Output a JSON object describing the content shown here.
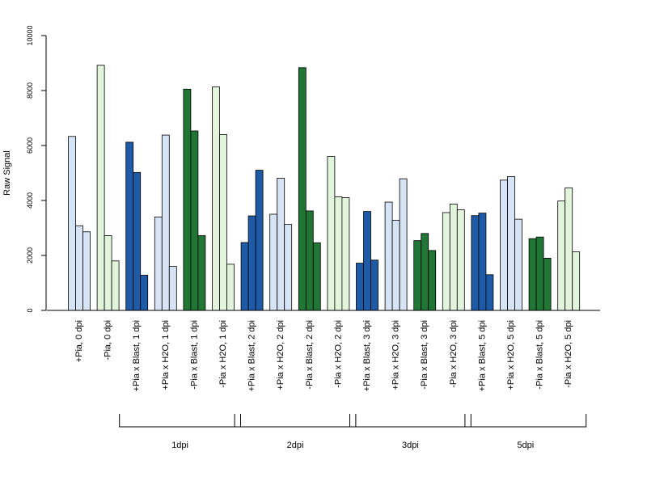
{
  "chart_data": {
    "type": "bar",
    "ylabel": "Raw Signal",
    "ylim": [
      0,
      10000
    ],
    "yticks": [
      0,
      2000,
      4000,
      6000,
      8000,
      10000
    ],
    "grid": false,
    "colors": {
      "plus_pia_blast": "#1f5aa6",
      "plus_pia_h2o": "#d6e4f5",
      "minus_pia_blast": "#217535",
      "minus_pia_h2o": "#e2f5dc"
    },
    "categories": [
      {
        "label": "+Pia, 0 dpi",
        "color_key": "plus_pia_h2o",
        "values": [
          6330,
          3080,
          2860
        ]
      },
      {
        "label": "-Pia, 0 dpi",
        "color_key": "minus_pia_h2o",
        "values": [
          8920,
          2720,
          1800
        ]
      },
      {
        "label": "+Pia x Blast, 1 dpi",
        "color_key": "plus_pia_blast",
        "values": [
          6120,
          5020,
          1280
        ]
      },
      {
        "label": "+Pia x H2O, 1 dpi",
        "color_key": "plus_pia_h2o",
        "values": [
          3400,
          6380,
          1600
        ]
      },
      {
        "label": "-Pia x Blast, 1 dpi",
        "color_key": "minus_pia_blast",
        "values": [
          8050,
          6530,
          2720
        ]
      },
      {
        "label": "-Pia x H2O, 1 dpi",
        "color_key": "minus_pia_h2o",
        "values": [
          8130,
          6400,
          1680
        ]
      },
      {
        "label": "+Pia x Blast, 2 dpi",
        "color_key": "plus_pia_blast",
        "values": [
          2470,
          3440,
          5100
        ]
      },
      {
        "label": "+Pia x H2O, 2 dpi",
        "color_key": "plus_pia_h2o",
        "values": [
          3500,
          4810,
          3130
        ]
      },
      {
        "label": "-Pia x Blast, 2 dpi",
        "color_key": "minus_pia_blast",
        "values": [
          8830,
          3620,
          2460
        ]
      },
      {
        "label": "-Pia x H2O, 2 dpi",
        "color_key": "minus_pia_h2o",
        "values": [
          5600,
          4130,
          4100
        ]
      },
      {
        "label": "+Pia x Blast, 3 dpi",
        "color_key": "plus_pia_blast",
        "values": [
          1720,
          3600,
          1830
        ]
      },
      {
        "label": "+Pia x H2O, 3 dpi",
        "color_key": "plus_pia_h2o",
        "values": [
          3940,
          3280,
          4790
        ]
      },
      {
        "label": "-Pia x Blast, 3 dpi",
        "color_key": "minus_pia_blast",
        "values": [
          2540,
          2800,
          2180
        ]
      },
      {
        "label": "-Pia x H2O, 3 dpi",
        "color_key": "minus_pia_h2o",
        "values": [
          3560,
          3870,
          3660
        ]
      },
      {
        "label": "+Pia x Blast, 5 dpi",
        "color_key": "plus_pia_blast",
        "values": [
          3450,
          3540,
          1300
        ]
      },
      {
        "label": "+Pia x H2O, 5 dpi",
        "color_key": "plus_pia_h2o",
        "values": [
          4740,
          4870,
          3320
        ]
      },
      {
        "label": "-Pia x Blast, 5 dpi",
        "color_key": "minus_pia_blast",
        "values": [
          2610,
          2670,
          1900
        ]
      },
      {
        "label": "-Pia x H2O, 5 dpi",
        "color_key": "minus_pia_h2o",
        "values": [
          3980,
          4460,
          2130
        ]
      }
    ],
    "groups": [
      {
        "label": "1dpi",
        "first": 2,
        "last": 5
      },
      {
        "label": "2dpi",
        "first": 6,
        "last": 9
      },
      {
        "label": "3dpi",
        "first": 10,
        "last": 13
      },
      {
        "label": "5dpi",
        "first": 14,
        "last": 17
      }
    ]
  }
}
